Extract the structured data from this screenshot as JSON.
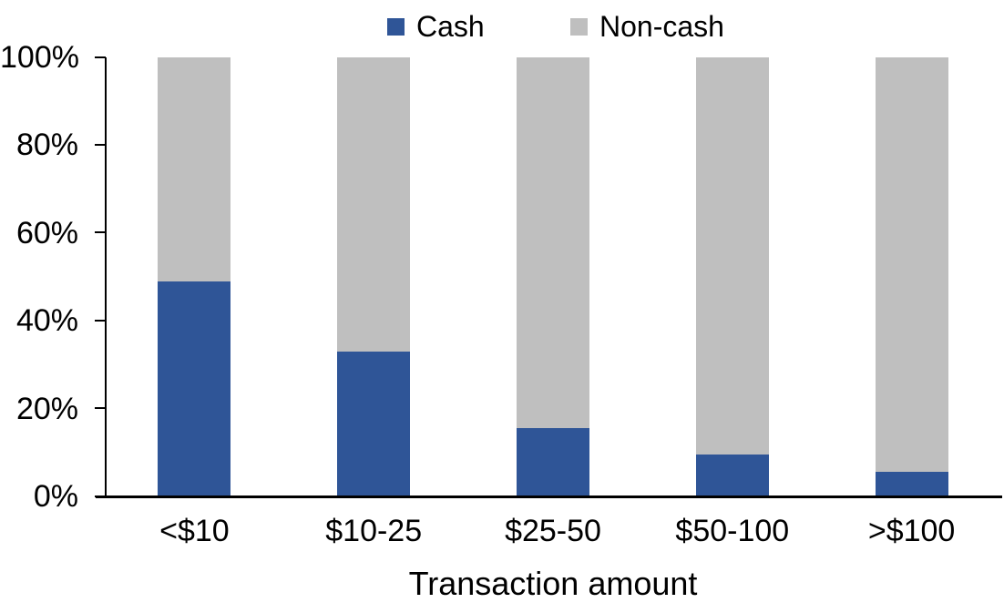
{
  "chart_data": {
    "type": "bar",
    "stacked": true,
    "stack_total": 100,
    "orientation": "vertical",
    "title": "",
    "xlabel": "Transaction amount",
    "ylabel": "",
    "categories": [
      "<$10",
      "$10-25",
      "$25-50",
      "$50-100",
      ">$100"
    ],
    "series": [
      {
        "name": "Cash",
        "color": "#2F5597",
        "values": [
          49,
          33,
          15.5,
          9.5,
          5.5
        ]
      },
      {
        "name": "Non-cash",
        "color": "#BFBFBF",
        "values": [
          51,
          67,
          84.5,
          90.5,
          94.5
        ]
      }
    ],
    "ylim": [
      0,
      100
    ],
    "yticks": [
      "0%",
      "20%",
      "40%",
      "60%",
      "80%",
      "100%"
    ],
    "ytick_values": [
      0,
      20,
      40,
      60,
      80,
      100
    ],
    "grid": false,
    "legend_position": "top",
    "axis_color": "#000000",
    "text_color": "#000000",
    "background": "#FFFFFF"
  }
}
